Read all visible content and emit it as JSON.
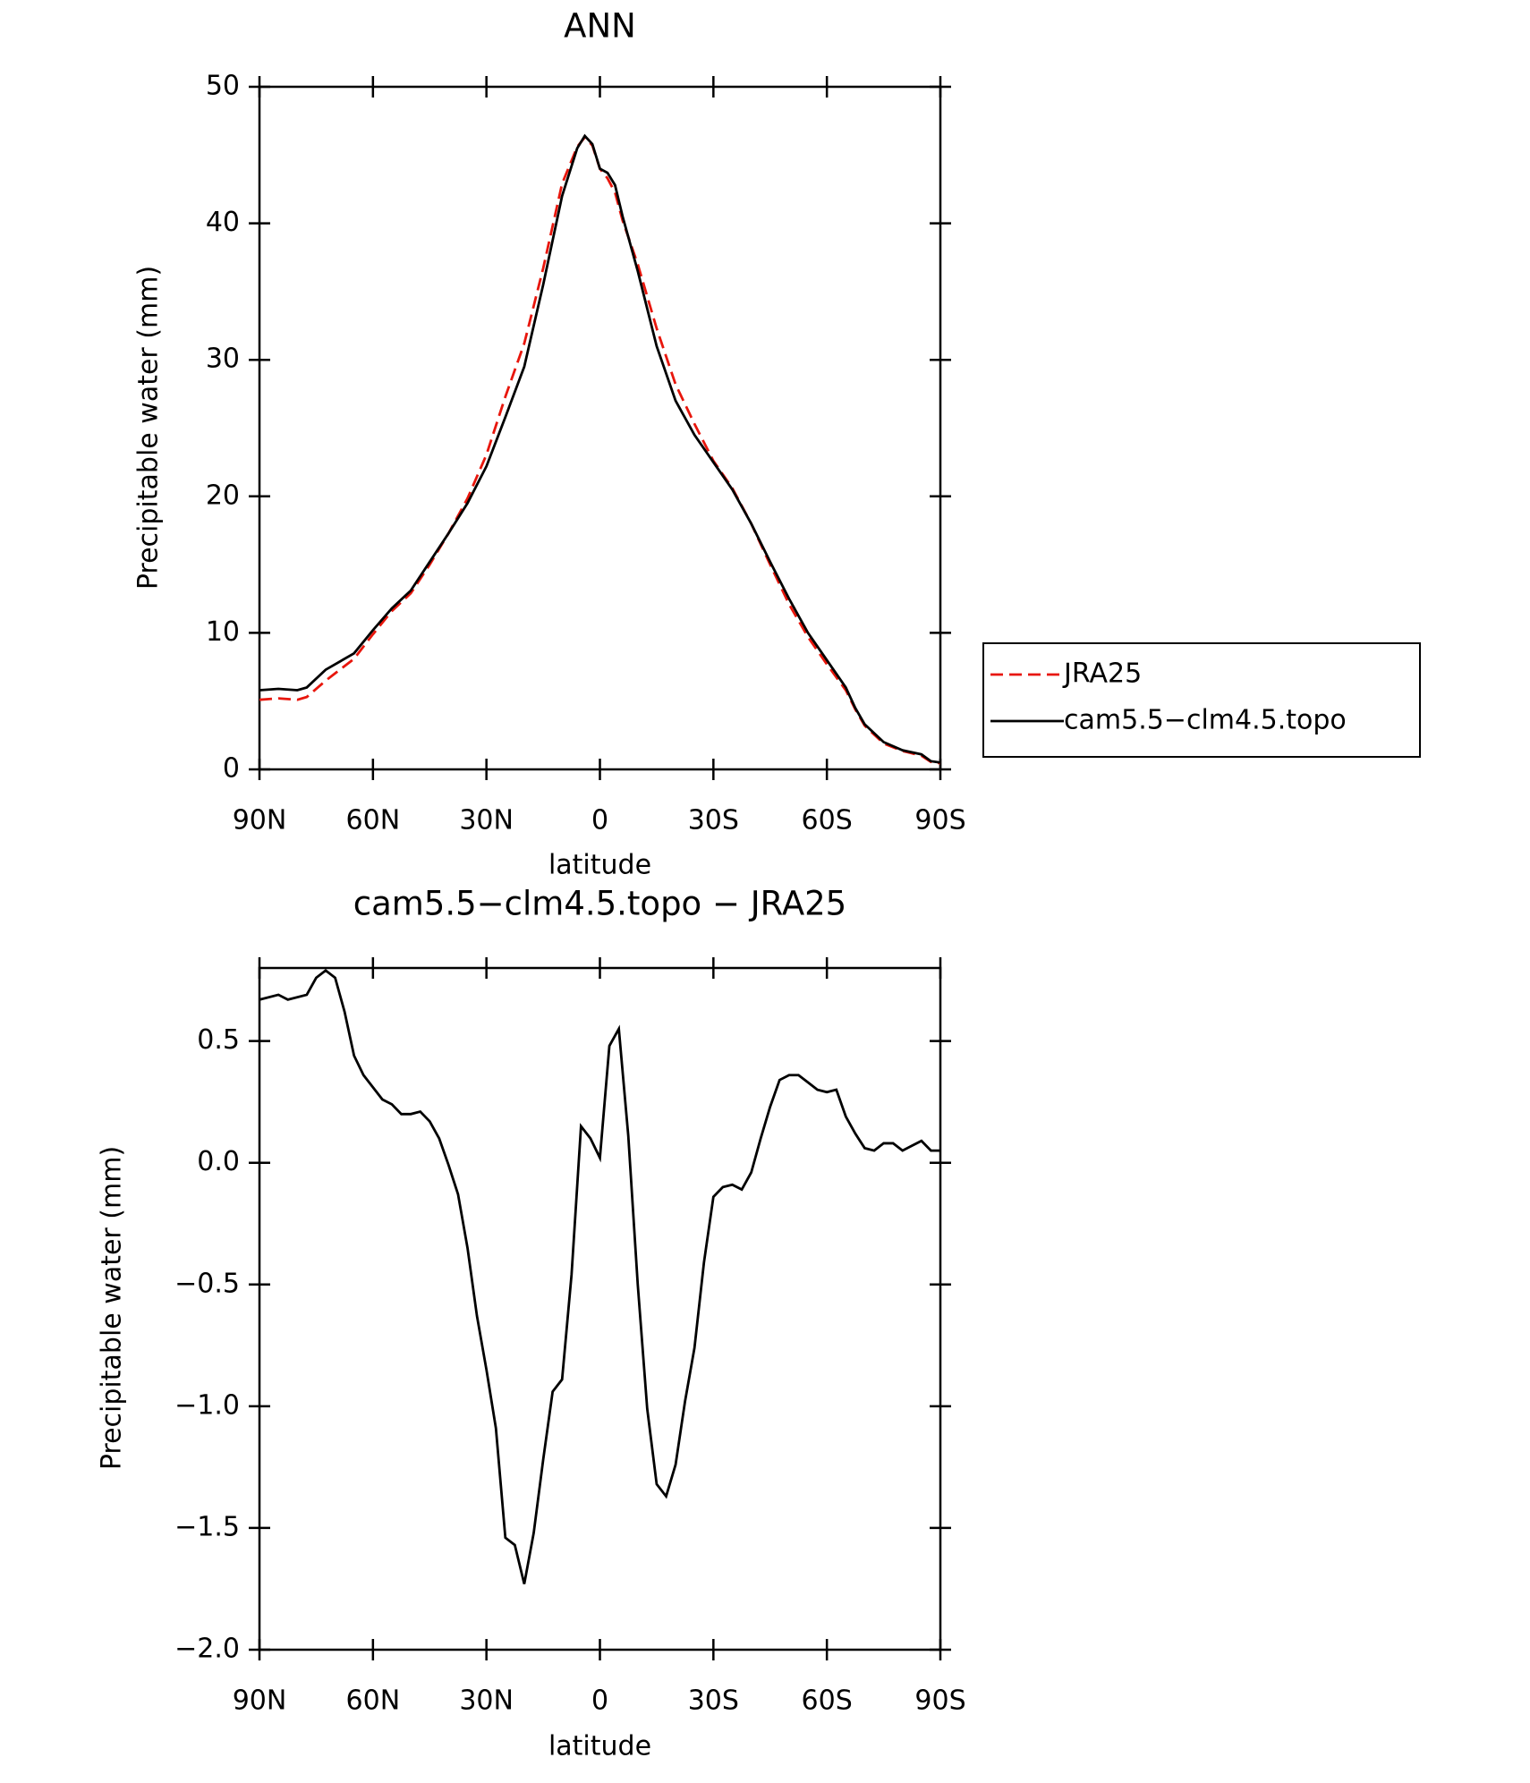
{
  "chart_data": [
    {
      "type": "line",
      "title": "ANN",
      "xlabel": "latitude",
      "ylabel": "Precipitable water (mm)",
      "xlim": [
        90,
        -90
      ],
      "xticks": [
        {
          "value": 90,
          "label": "90N"
        },
        {
          "value": 60,
          "label": "60N"
        },
        {
          "value": 30,
          "label": "30N"
        },
        0,
        {
          "value": -30,
          "label": "30S"
        },
        {
          "value": -60,
          "label": "60S"
        },
        {
          "value": -90,
          "label": "90S"
        }
      ],
      "ylim": [
        0,
        50
      ],
      "yticks": [
        0,
        10,
        20,
        30,
        40,
        50
      ],
      "legend": "right",
      "x": [
        90,
        85,
        80,
        77.5,
        72.5,
        65,
        60,
        55,
        50,
        45,
        40,
        35,
        30,
        25,
        20,
        15,
        10,
        6,
        4,
        2,
        0,
        -2,
        -4,
        -6,
        -10,
        -15,
        -20,
        -25,
        -30,
        -35,
        -40,
        -45,
        -50,
        -55,
        -60,
        -65,
        -67.5,
        -70,
        -75,
        -80,
        -85,
        -87.5,
        -90
      ],
      "series": [
        {
          "name": "JRA25",
          "color": "#e8160c",
          "dash": true,
          "values": [
            5.1,
            5.2,
            5.1,
            5.3,
            6.5,
            8.1,
            9.9,
            11.6,
            12.9,
            15.0,
            17.3,
            19.85,
            23.05,
            27.3,
            31.2,
            36.7,
            42.9,
            45.6,
            46.3,
            45.7,
            44,
            43.3,
            42.25,
            40.2,
            37,
            32.3,
            28.2,
            25.3,
            22.6,
            20.6,
            18,
            15,
            12.1,
            9.7,
            7.7,
            5.8,
            4.4,
            3.2,
            1.9,
            1.35,
            1.0,
            0.55,
            0.45
          ]
        },
        {
          "name": "cam5.5−clm4.5.topo",
          "color": "#000000",
          "dash": false,
          "values": [
            5.8,
            5.9,
            5.8,
            6.0,
            7.3,
            8.5,
            10.2,
            11.8,
            13.1,
            15.2,
            17.3,
            19.5,
            22.2,
            25.8,
            29.5,
            35.5,
            42,
            45.5,
            46.4,
            45.8,
            44,
            43.7,
            42.8,
            40.5,
            36.5,
            31,
            27,
            24.5,
            22.5,
            20.5,
            18,
            15.2,
            12.5,
            10,
            8,
            6,
            4.5,
            3.3,
            2,
            1.4,
            1.1,
            0.6,
            0.5
          ]
        }
      ]
    },
    {
      "type": "line",
      "title": "cam5.5−clm4.5.topo − JRA25",
      "xlabel": "latitude",
      "ylabel": "Precipitable water (mm)",
      "xlim": [
        90,
        -90
      ],
      "xticks": [
        {
          "value": 90,
          "label": "90N"
        },
        {
          "value": 60,
          "label": "60N"
        },
        {
          "value": 30,
          "label": "30N"
        },
        0,
        {
          "value": -30,
          "label": "30S"
        },
        {
          "value": -60,
          "label": "60S"
        },
        {
          "value": -90,
          "label": "90S"
        }
      ],
      "ylim": [
        -2.0,
        0.8
      ],
      "yticks": [
        0.5,
        {
          "value": 0,
          "label": "0.0"
        },
        {
          "value": -0.5,
          "label": "−0.5"
        },
        {
          "value": -1,
          "label": "−1.0"
        },
        {
          "value": -1.5,
          "label": "−1.5"
        },
        {
          "value": -2,
          "label": "−2.0"
        }
      ],
      "x": [
        90,
        85,
        82.5,
        77.5,
        75,
        72.5,
        70,
        67.5,
        65,
        62.5,
        57.5,
        55,
        52.5,
        50,
        47.5,
        45,
        42.5,
        40,
        37.5,
        35,
        32.5,
        30,
        27.5,
        25,
        22.5,
        20,
        17.5,
        15,
        12.5,
        10,
        7.5,
        5,
        2.5,
        0,
        -2.5,
        -5,
        -7.5,
        -10,
        -12.5,
        -15,
        -17.5,
        -20,
        -22.5,
        -25,
        -27.5,
        -30,
        -32.5,
        -35,
        -37.5,
        -40,
        -42.5,
        -45,
        -47.5,
        -50,
        -52.5,
        -55,
        -57.5,
        -60,
        -62.5,
        -65,
        -67.5,
        -70,
        -72.5,
        -75,
        -77.5,
        -80,
        -82.5,
        -85,
        -87.5,
        -90
      ],
      "series": [
        {
          "color": "#000000",
          "dash": false,
          "values": [
            0.67,
            0.69,
            0.67,
            0.69,
            0.76,
            0.79,
            0.76,
            0.62,
            0.44,
            0.36,
            0.26,
            0.24,
            0.2,
            0.2,
            0.21,
            0.17,
            0.1,
            -0.01,
            -0.13,
            -0.35,
            -0.63,
            -0.85,
            -1.09,
            -1.54,
            -1.57,
            -1.73,
            -1.52,
            -1.22,
            -0.94,
            -0.89,
            -0.46,
            0.15,
            0.1,
            0.02,
            0.48,
            0.55,
            0.11,
            -0.5,
            -1.01,
            -1.32,
            -1.37,
            -1.24,
            -0.98,
            -0.76,
            -0.41,
            -0.14,
            -0.1,
            -0.09,
            -0.11,
            -0.04,
            0.1,
            0.23,
            0.34,
            0.36,
            0.36,
            0.33,
            0.3,
            0.29,
            0.3,
            0.19,
            0.12,
            0.06,
            0.05,
            0.08,
            0.08,
            0.05,
            0.07,
            0.09,
            0.05,
            0.05
          ]
        }
      ]
    }
  ]
}
